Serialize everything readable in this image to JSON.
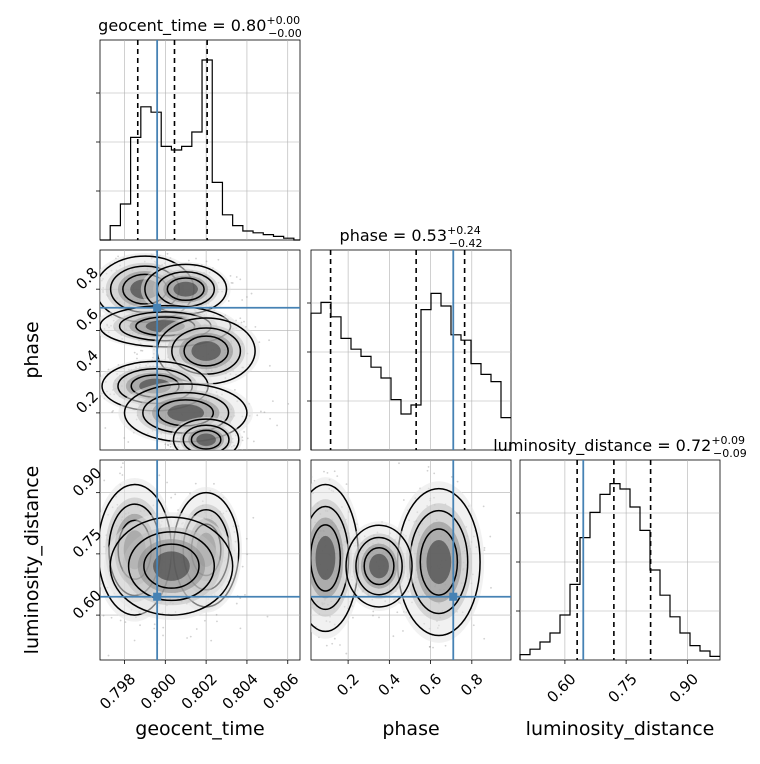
{
  "chart_data": {
    "type": "corner",
    "grid": true,
    "colors": {
      "truth": "#4682b4",
      "hist": "#000000",
      "points": "#9a9a9a",
      "grid": "#b0b0b0"
    },
    "parameters": [
      {
        "key": "geocent_time",
        "label": "geocent_time",
        "range": [
          0.7968,
          0.8066
        ],
        "ticks": [
          0.798,
          0.8,
          0.802,
          0.804,
          0.806
        ],
        "tick_labels": [
          "0.798",
          "0.800",
          "0.802",
          "0.804",
          "0.806"
        ],
        "truth": 0.7996
      },
      {
        "key": "phase",
        "label": "phase",
        "range": [
          0.02,
          0.99
        ],
        "ticks": [
          0.2,
          0.4,
          0.6,
          0.8
        ],
        "tick_labels": [
          "0.2",
          "0.4",
          "0.6",
          "0.8"
        ],
        "truth": 0.71
      },
      {
        "key": "luminosity_distance",
        "label": "luminosity_distance",
        "range": [
          0.49,
          0.98
        ],
        "ticks": [
          0.6,
          0.75,
          0.9
        ],
        "tick_labels": [
          "0.60",
          "0.75",
          "0.90"
        ],
        "truth": 0.645
      }
    ],
    "diagonal": [
      {
        "title": {
          "prefix": "geocent_time = ",
          "median": "0.80",
          "plus": "+0.00",
          "minus": "−0.00"
        },
        "quantiles": [
          0.79865,
          0.80045,
          0.80205
        ],
        "bin_edges": [
          0.7968,
          0.7973,
          0.7978,
          0.7983,
          0.7988,
          0.7993,
          0.7998,
          0.8003,
          0.8008,
          0.8013,
          0.8018,
          0.8023,
          0.8028,
          0.8033,
          0.8038,
          0.8043,
          0.8048,
          0.8053,
          0.8058,
          0.8063,
          0.8066
        ],
        "counts": [
          0,
          0.08,
          0.2,
          0.57,
          0.74,
          0.71,
          0.52,
          0.5,
          0.52,
          0.6,
          1.0,
          0.32,
          0.14,
          0.08,
          0.05,
          0.04,
          0.03,
          0.02,
          0.01,
          0
        ]
      },
      {
        "title": {
          "prefix": "phase = ",
          "median": "0.53",
          "plus": "+0.24",
          "minus": "−0.42"
        },
        "quantiles": [
          0.115,
          0.53,
          0.765
        ],
        "bin_edges": [
          0.02,
          0.0685,
          0.117,
          0.1655,
          0.214,
          0.2625,
          0.311,
          0.3595,
          0.408,
          0.4565,
          0.505,
          0.5535,
          0.602,
          0.6505,
          0.699,
          0.7475,
          0.796,
          0.8445,
          0.893,
          0.9415,
          0.99
        ],
        "counts": [
          0.76,
          0.82,
          0.74,
          0.62,
          0.56,
          0.52,
          0.46,
          0.4,
          0.28,
          0.2,
          0.25,
          0.78,
          0.87,
          0.8,
          0.64,
          0.61,
          0.48,
          0.42,
          0.38,
          0.18
        ]
      },
      {
        "title": {
          "prefix": "luminosity_distance = ",
          "median": "0.72",
          "plus": "+0.09",
          "minus": "−0.09"
        },
        "quantiles": [
          0.63,
          0.72,
          0.81
        ],
        "bin_edges": [
          0.49,
          0.5145,
          0.539,
          0.5635,
          0.588,
          0.6125,
          0.637,
          0.6615,
          0.686,
          0.7105,
          0.735,
          0.7595,
          0.784,
          0.8085,
          0.833,
          0.8575,
          0.882,
          0.9065,
          0.931,
          0.9555,
          0.98
        ],
        "counts": [
          0.03,
          0.06,
          0.1,
          0.15,
          0.25,
          0.42,
          0.68,
          0.82,
          0.92,
          0.98,
          0.95,
          0.85,
          0.72,
          0.5,
          0.36,
          0.24,
          0.15,
          0.08,
          0.05,
          0.02
        ]
      }
    ]
  }
}
